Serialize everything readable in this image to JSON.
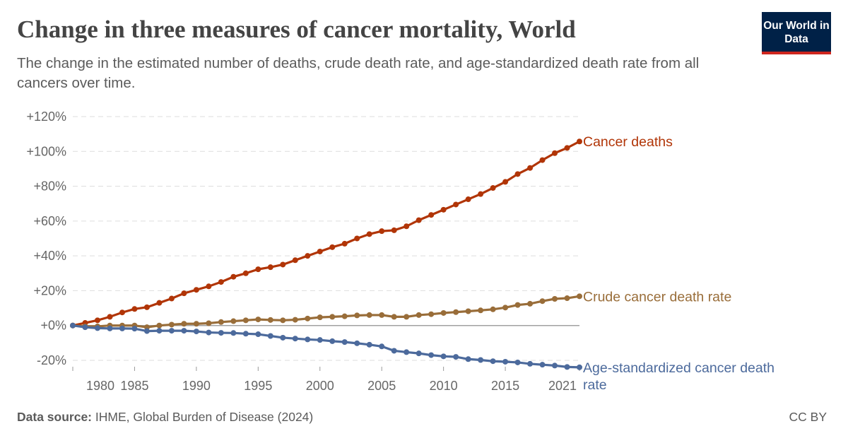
{
  "header": {
    "title": "Change in three measures of cancer mortality, World",
    "subtitle": "The change in the estimated number of deaths, crude death rate, and age-standardized death rate from all cancers over time.",
    "logo": "Our World in Data"
  },
  "footer": {
    "source_label": "Data source:",
    "source": "IHME, Global Burden of Disease (2024)",
    "license": "CC BY"
  },
  "chart_data": {
    "type": "line",
    "title": "Change in three measures of cancer mortality, World",
    "xlim": [
      1980,
      2021
    ],
    "ylim": [
      -20,
      120
    ],
    "x_ticks": [
      1980,
      1985,
      1990,
      1995,
      2000,
      2005,
      2010,
      2015,
      2021
    ],
    "y_ticks": [
      "-20%",
      "+0%",
      "+20%",
      "+40%",
      "+60%",
      "+80%",
      "+100%",
      "+120%"
    ],
    "y_tick_values": [
      -20,
      0,
      20,
      40,
      60,
      80,
      100,
      120
    ],
    "grid": "horizontal dashed",
    "legend": "inline labels at line ends",
    "x": [
      1980,
      1981,
      1982,
      1983,
      1984,
      1985,
      1986,
      1987,
      1988,
      1989,
      1990,
      1991,
      1992,
      1993,
      1994,
      1995,
      1996,
      1997,
      1998,
      1999,
      2000,
      2001,
      2002,
      2003,
      2004,
      2005,
      2006,
      2007,
      2008,
      2009,
      2010,
      2011,
      2012,
      2013,
      2014,
      2015,
      2016,
      2017,
      2018,
      2019,
      2020,
      2021
    ],
    "series": [
      {
        "name": "Cancer deaths",
        "color": "#b13507",
        "values": [
          0,
          1.5,
          3,
          5,
          7.5,
          9.5,
          10.5,
          13,
          15.5,
          18.5,
          20.5,
          22.5,
          25,
          28,
          30,
          32.3,
          33.5,
          35,
          37.5,
          40,
          42.5,
          45,
          47,
          50,
          52.5,
          54.2,
          54.7,
          57,
          60.5,
          63.5,
          66.5,
          69.5,
          72.5,
          75.5,
          79,
          82.5,
          87,
          90.5,
          95,
          99,
          102,
          105.7
        ]
      },
      {
        "name": "Crude cancer death rate",
        "color": "#996d39",
        "values": [
          0,
          -0.5,
          -0.5,
          0,
          0,
          0,
          -1,
          0,
          0.5,
          1,
          1,
          1.3,
          2,
          2.5,
          3,
          3.5,
          3.2,
          3,
          3.3,
          4,
          4.7,
          5,
          5.3,
          5.8,
          6,
          6,
          5,
          5,
          6,
          6.5,
          7.2,
          7.7,
          8.2,
          8.7,
          9.3,
          10.3,
          11.8,
          12.5,
          14,
          15.3,
          15.7,
          16.8
        ]
      },
      {
        "name": "Age-standardized cancer death rate",
        "color": "#4c6a9c",
        "values": [
          0,
          -1,
          -1.5,
          -1.7,
          -1.7,
          -1.8,
          -3.2,
          -3,
          -3,
          -3,
          -3.4,
          -4,
          -4.2,
          -4.3,
          -4.7,
          -5,
          -6,
          -7,
          -7.5,
          -8,
          -8.3,
          -9,
          -9.5,
          -10.2,
          -11,
          -12,
          -14.5,
          -15.3,
          -16,
          -17,
          -17.7,
          -18,
          -19.3,
          -19.8,
          -20.5,
          -20.8,
          -21.2,
          -22,
          -22.5,
          -23,
          -23.8,
          -24
        ]
      }
    ]
  }
}
